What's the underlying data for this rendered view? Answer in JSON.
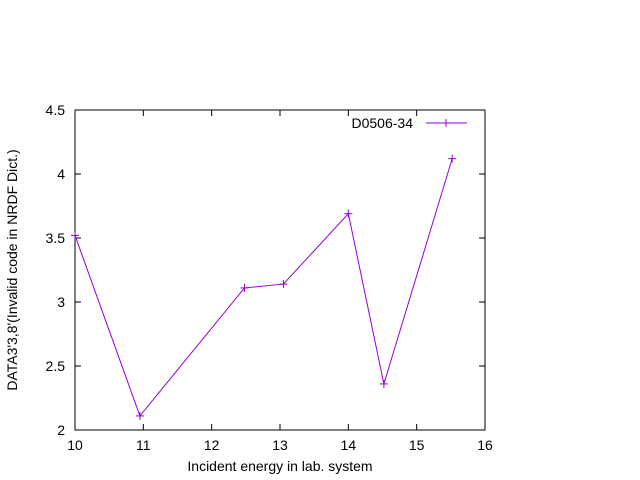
{
  "chart_data": {
    "type": "line",
    "title": "",
    "xlabel": "Incident energy in lab. system",
    "ylabel": "DATA3'3,8'(Invalid code in NRDF Dict.)",
    "xlim": [
      10,
      16
    ],
    "ylim": [
      2,
      4.5
    ],
    "x_ticks": [
      "10",
      "11",
      "12",
      "13",
      "14",
      "15",
      "16"
    ],
    "y_ticks": [
      "2",
      "2.5",
      "3",
      "3.5",
      "4",
      "4.5"
    ],
    "grid": false,
    "legend_position": "top-right",
    "series": [
      {
        "name": "D0506-34",
        "color": "#9400d3",
        "marker": "plus",
        "x": [
          10.0,
          10.95,
          12.48,
          13.05,
          14.0,
          14.52,
          15.52
        ],
        "y": [
          3.52,
          2.11,
          3.11,
          3.14,
          3.69,
          2.36,
          4.12
        ]
      }
    ]
  }
}
